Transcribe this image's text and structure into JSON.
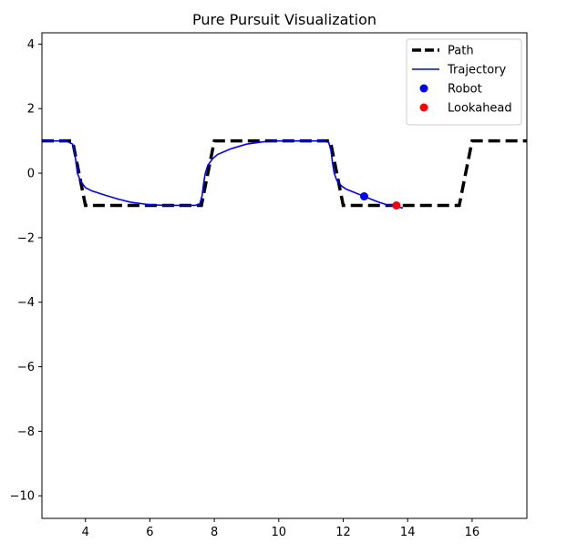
{
  "chart_data": {
    "type": "line",
    "title": "Pure Pursuit Visualization",
    "xlabel": "",
    "ylabel": "",
    "xlim": [
      2.65,
      17.7
    ],
    "ylim": [
      -10.7,
      4.35
    ],
    "xticks": [
      4,
      6,
      8,
      10,
      12,
      14,
      16
    ],
    "yticks": [
      4,
      2,
      0,
      -2,
      -4,
      -6,
      -8,
      -10
    ],
    "grid": false,
    "legend_position": "top-right",
    "series": [
      {
        "name": "Path",
        "kind": "line",
        "style": "dashed",
        "color": "#000000",
        "x": [
          2.65,
          3.6,
          4.0,
          7.6,
          8.0,
          11.6,
          12.0,
          15.6,
          16.0,
          17.7
        ],
        "y": [
          1,
          1,
          -1,
          -1,
          1,
          1,
          -1,
          -1,
          1,
          1
        ]
      },
      {
        "name": "Trajectory",
        "kind": "line",
        "style": "solid",
        "color": "#0000ff",
        "x": [
          2.65,
          3.4,
          3.6,
          3.65,
          3.7,
          3.75,
          3.85,
          4.0,
          4.2,
          4.6,
          5.0,
          5.4,
          6.0,
          6.5,
          7.0,
          7.4,
          7.55,
          7.62,
          7.67,
          7.72,
          7.8,
          7.95,
          8.1,
          8.5,
          9.0,
          9.5,
          10.0,
          10.5,
          11.0,
          11.4,
          11.55,
          11.62,
          11.67,
          11.72,
          11.8,
          11.95,
          12.1,
          12.4,
          12.65,
          12.9,
          13.1,
          13.35,
          13.6,
          13.85
        ],
        "y": [
          1,
          1,
          0.9,
          0.7,
          0.4,
          0.0,
          -0.25,
          -0.45,
          -0.55,
          -0.68,
          -0.8,
          -0.9,
          -0.98,
          -1.0,
          -1.0,
          -1.0,
          -0.95,
          -0.7,
          -0.3,
          0.0,
          0.25,
          0.45,
          0.58,
          0.75,
          0.9,
          0.97,
          1.0,
          1.0,
          1.0,
          1.0,
          0.95,
          0.7,
          0.3,
          0.0,
          -0.22,
          -0.4,
          -0.5,
          -0.62,
          -0.72,
          -0.82,
          -0.9,
          -0.98,
          -1.03,
          -1.08
        ]
      },
      {
        "name": "Robot",
        "kind": "scatter",
        "color": "#0000ff",
        "x": [
          12.65
        ],
        "y": [
          -0.72
        ]
      },
      {
        "name": "Lookahead",
        "kind": "scatter",
        "color": "#ff0000",
        "x": [
          13.65
        ],
        "y": [
          -1.0
        ]
      }
    ]
  }
}
